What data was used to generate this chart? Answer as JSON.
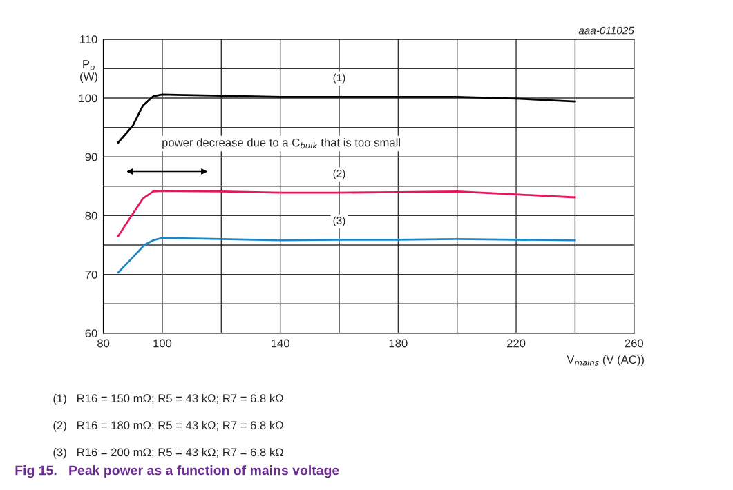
{
  "chart_data": {
    "type": "line",
    "title": "Fig 15.   Peak power as a function of mains voltage",
    "xlabel": "V$_{mains}$ (V (AC))",
    "ylabel": "P$_{o}$\n(W)",
    "series": [
      {
        "name": "(1)",
        "color": "#000000",
        "x": [
          85,
          90,
          93.4,
          96.9,
          100,
          120,
          140,
          160,
          180,
          200,
          220,
          240
        ],
        "values": [
          92.4,
          95.3,
          98.7,
          100.3,
          100.6,
          100.4,
          100.2,
          100.2,
          100.2,
          100.2,
          99.9,
          99.4
        ]
      },
      {
        "name": "(2)",
        "color": "#e8175d",
        "x": [
          85,
          90,
          93.4,
          96.9,
          100,
          120,
          140,
          160,
          180,
          200,
          220,
          240
        ],
        "values": [
          76.5,
          80.3,
          82.9,
          84.1,
          84.2,
          84.1,
          83.9,
          83.9,
          84.0,
          84.1,
          83.6,
          83.1
        ]
      },
      {
        "name": "(3)",
        "color": "#1a87c9",
        "x": [
          85,
          90,
          93.9,
          96.9,
          100,
          120,
          140,
          160,
          180,
          200,
          220,
          240
        ],
        "values": [
          70.3,
          72.9,
          75.0,
          75.8,
          76.2,
          76.0,
          75.8,
          75.9,
          75.9,
          76.0,
          75.9,
          75.8
        ]
      }
    ],
    "xlim": [
      80,
      260
    ],
    "xticks": [
      80,
      100,
      {
        "value": 120,
        "label": null
      },
      140,
      {
        "value": 160,
        "label": null
      },
      180,
      {
        "value": 200,
        "label": null
      },
      220,
      {
        "value": 240,
        "label": null
      },
      260
    ],
    "ylim": [
      60,
      110
    ],
    "yticks": [
      60,
      {
        "value": 65,
        "label": null
      },
      70,
      {
        "value": 75,
        "label": null
      },
      80,
      {
        "value": 85,
        "label": null
      },
      90,
      {
        "value": 95,
        "label": null
      },
      100,
      {
        "value": 105,
        "label": null
      },
      110
    ],
    "grid": true,
    "legend": false,
    "marker": "none",
    "line_style": "solid",
    "annotations": [
      "aaa-011025",
      "power decrease due to a C$_{bulk}$ that is too small",
      "(1)   R16 = 150 mΩ; R5 = 43 kΩ; R7 = 6.8 kΩ",
      "(2)   R16 = 180 mΩ; R5 = 43 kΩ; R7 = 6.8 kΩ",
      "(3)   R16 = 200 mΩ; R5 = 43 kΩ; R7 = 6.8 kΩ"
    ]
  }
}
